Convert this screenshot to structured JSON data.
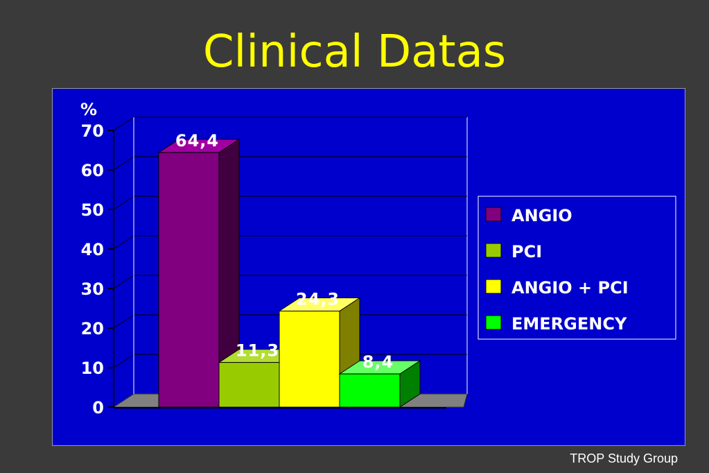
{
  "page": {
    "title": "Clinical Datas",
    "footer": "TROP Study Group"
  },
  "chart_data": {
    "type": "bar",
    "title": "",
    "ylabel": "%",
    "xlabel": "",
    "ylim": [
      0,
      70
    ],
    "yticks": [
      0,
      10,
      20,
      30,
      40,
      50,
      60,
      70
    ],
    "ytick_labels": [
      "0",
      "10",
      "20",
      "30",
      "40",
      "50",
      "60",
      "70"
    ],
    "grid": true,
    "legend_position": "right",
    "series": [
      {
        "name": "ANGIO",
        "value": 64.4,
        "label": "64,4",
        "color": "#800080",
        "side_color": "#400040",
        "top_color": "#a000a0"
      },
      {
        "name": "PCI",
        "value": 11.3,
        "label": "11,3",
        "color": "#99cc00",
        "side_color": "#4d6600",
        "top_color": "#b3dd33"
      },
      {
        "name": "ANGIO + PCI",
        "value": 24.3,
        "label": "24,3",
        "color": "#ffff00",
        "side_color": "#808000",
        "top_color": "#ffff66"
      },
      {
        "name": "EMERGENCY",
        "value": 8.4,
        "label": "8,4",
        "color": "#00ff00",
        "side_color": "#008000",
        "top_color": "#66ff66"
      }
    ]
  }
}
